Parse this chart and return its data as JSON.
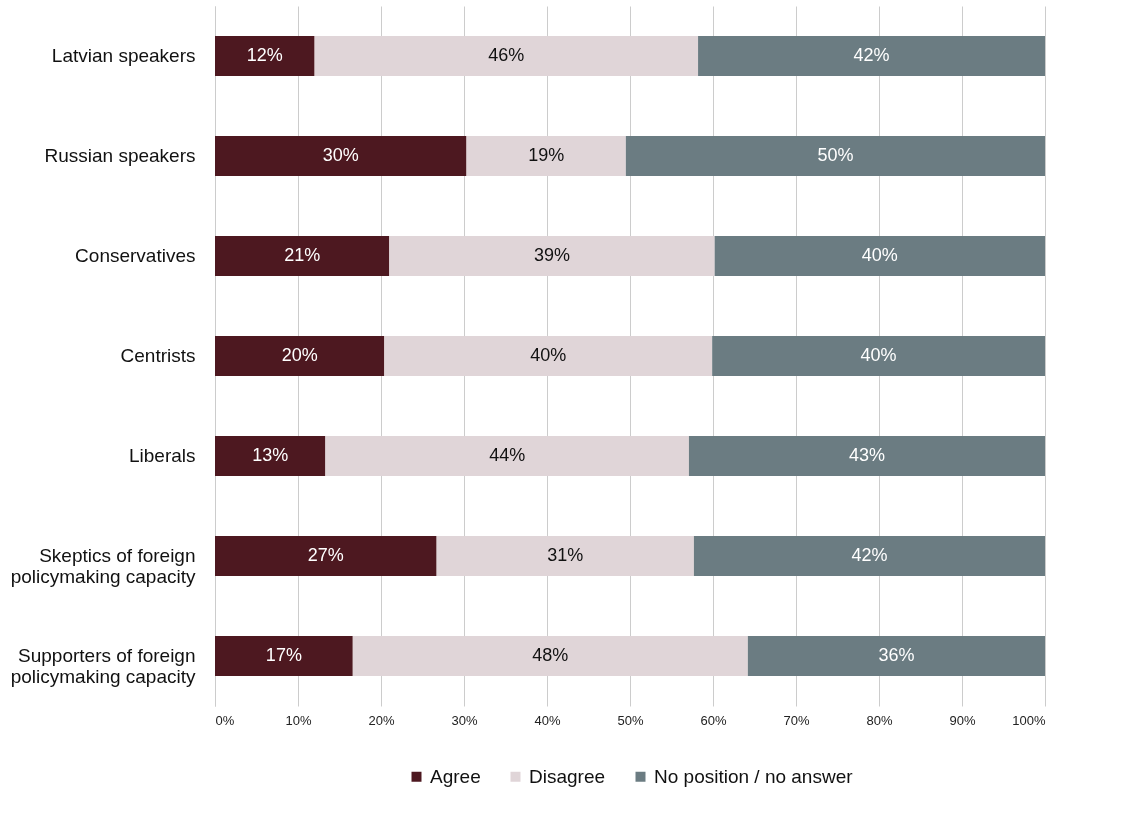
{
  "chart_data": {
    "type": "bar",
    "orientation": "horizontal",
    "stacked": true,
    "categories": [
      "Latvian speakers",
      "Russian speakers",
      "Conservatives",
      "Centrists",
      "Liberals",
      "Skeptics of foreign policymaking capacity",
      "Supporters of foreign policymaking capacity"
    ],
    "series": [
      {
        "name": "Agree",
        "color": "#4d1820",
        "values": [
          12,
          30.3,
          21,
          20.4,
          13.3,
          26.7,
          16.6
        ],
        "value_labels": [
          "12%",
          "30%",
          "21%",
          "20%",
          "13%",
          "27%",
          "17%"
        ]
      },
      {
        "name": "Disagree",
        "color": "#e0d5d8",
        "values": [
          46.2,
          19.2,
          39.2,
          39.5,
          43.8,
          31,
          47.6
        ],
        "value_labels": [
          "46%",
          "19%",
          "39%",
          "40%",
          "44%",
          "31%",
          "48%"
        ]
      },
      {
        "name": "No position / no answer",
        "color": "#6b7c82",
        "values": [
          41.8,
          50.5,
          39.8,
          40.1,
          42.9,
          42.3,
          35.8
        ],
        "value_labels": [
          "42%",
          "50%",
          "40%",
          "40%",
          "43%",
          "42%",
          "36%"
        ]
      }
    ],
    "xlim": [
      0,
      100
    ],
    "xticks": [
      {
        "value": 0,
        "label": "0%"
      },
      {
        "value": 10,
        "label": "10%"
      },
      {
        "value": 20,
        "label": "20%"
      },
      {
        "value": 30,
        "label": "30%"
      },
      {
        "value": 40,
        "label": "40%"
      },
      {
        "value": 50,
        "label": "50%"
      },
      {
        "value": 60,
        "label": "60%"
      },
      {
        "value": 70,
        "label": "70%"
      },
      {
        "value": 80,
        "label": "80%"
      },
      {
        "value": 90,
        "label": "90%"
      },
      {
        "value": 100,
        "label": "100%"
      }
    ],
    "grid": "x",
    "legend": "bottom"
  }
}
